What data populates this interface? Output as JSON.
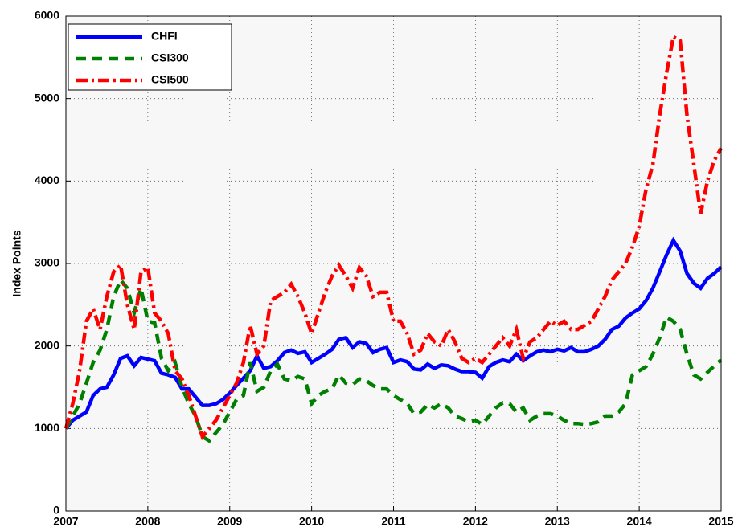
{
  "chart_data": {
    "type": "line",
    "y_label": "Index Points",
    "x": [
      2007,
      2007.083,
      2007.167,
      2007.25,
      2007.333,
      2007.417,
      2007.5,
      2007.583,
      2007.667,
      2007.75,
      2007.833,
      2007.917,
      2008,
      2008.083,
      2008.167,
      2008.25,
      2008.333,
      2008.417,
      2008.5,
      2008.583,
      2008.667,
      2008.75,
      2008.833,
      2008.917,
      2009,
      2009.083,
      2009.167,
      2009.25,
      2009.333,
      2009.417,
      2009.5,
      2009.583,
      2009.667,
      2009.75,
      2009.833,
      2009.917,
      2010,
      2010.083,
      2010.167,
      2010.25,
      2010.333,
      2010.417,
      2010.5,
      2010.583,
      2010.667,
      2010.75,
      2010.833,
      2010.917,
      2011,
      2011.083,
      2011.167,
      2011.25,
      2011.333,
      2011.417,
      2011.5,
      2011.583,
      2011.667,
      2011.75,
      2011.833,
      2011.917,
      2012,
      2012.083,
      2012.167,
      2012.25,
      2012.333,
      2012.417,
      2012.5,
      2012.583,
      2012.667,
      2012.75,
      2012.833,
      2012.917,
      2013,
      2013.083,
      2013.167,
      2013.25,
      2013.333,
      2013.417,
      2013.5,
      2013.583,
      2013.667,
      2013.75,
      2013.833,
      2013.917,
      2014,
      2014.083,
      2014.167,
      2014.25,
      2014.333,
      2014.417,
      2014.5,
      2014.583,
      2014.667,
      2014.75,
      2014.833,
      2014.917,
      2015
    ],
    "series": [
      {
        "name": "CHFI",
        "color": "#0000ff",
        "dash": "solid",
        "values": [
          1000,
          1100,
          1150,
          1200,
          1400,
          1480,
          1500,
          1650,
          1850,
          1880,
          1760,
          1860,
          1840,
          1820,
          1670,
          1650,
          1620,
          1480,
          1480,
          1380,
          1280,
          1280,
          1300,
          1350,
          1430,
          1520,
          1610,
          1700,
          1880,
          1730,
          1750,
          1820,
          1920,
          1950,
          1910,
          1930,
          1800,
          1850,
          1900,
          1960,
          2080,
          2100,
          1980,
          2050,
          2030,
          1920,
          1960,
          1980,
          1800,
          1830,
          1810,
          1720,
          1710,
          1780,
          1730,
          1770,
          1760,
          1720,
          1690,
          1690,
          1680,
          1610,
          1750,
          1800,
          1830,
          1810,
          1900,
          1820,
          1880,
          1930,
          1950,
          1930,
          1960,
          1940,
          1980,
          1930,
          1930,
          1960,
          2000,
          2080,
          2200,
          2240,
          2340,
          2400,
          2450,
          2550,
          2700,
          2900,
          3100,
          3280,
          3150,
          2880,
          2760,
          2700,
          2820,
          2880,
          2960
        ]
      },
      {
        "name": "CSI300",
        "color": "#008000",
        "dash": "dashed",
        "values": [
          1000,
          1150,
          1300,
          1550,
          1800,
          1950,
          2200,
          2600,
          2800,
          2700,
          2400,
          2700,
          2300,
          2280,
          1850,
          1700,
          1800,
          1500,
          1300,
          1150,
          900,
          850,
          950,
          1050,
          1200,
          1350,
          1400,
          1800,
          1450,
          1500,
          1700,
          1780,
          1600,
          1580,
          1630,
          1600,
          1300,
          1400,
          1450,
          1480,
          1650,
          1550,
          1530,
          1600,
          1580,
          1520,
          1480,
          1480,
          1400,
          1350,
          1300,
          1180,
          1200,
          1290,
          1250,
          1300,
          1250,
          1150,
          1120,
          1080,
          1100,
          1050,
          1150,
          1250,
          1310,
          1300,
          1200,
          1250,
          1100,
          1150,
          1180,
          1180,
          1150,
          1100,
          1060,
          1060,
          1050,
          1060,
          1080,
          1150,
          1150,
          1200,
          1300,
          1650,
          1700,
          1750,
          1900,
          2100,
          2350,
          2300,
          2200,
          1900,
          1650,
          1600,
          1680,
          1760,
          1830
        ]
      },
      {
        "name": "CSI500",
        "color": "#ff0000",
        "dash": "dashdot",
        "values": [
          1000,
          1300,
          1700,
          2300,
          2450,
          2200,
          2600,
          2900,
          2980,
          2500,
          2200,
          2900,
          2950,
          2400,
          2300,
          2150,
          1700,
          1600,
          1400,
          1150,
          900,
          1000,
          1100,
          1250,
          1400,
          1550,
          1800,
          2250,
          1900,
          2000,
          2550,
          2600,
          2650,
          2750,
          2600,
          2400,
          2150,
          2400,
          2650,
          2850,
          2980,
          2850,
          2700,
          2950,
          2850,
          2600,
          2650,
          2650,
          2300,
          2300,
          2150,
          1900,
          1950,
          2150,
          2050,
          2000,
          2200,
          2050,
          1850,
          1800,
          1850,
          1800,
          1900,
          2000,
          2100,
          2000,
          2200,
          1850,
          2050,
          2100,
          2200,
          2300,
          2250,
          2300,
          2200,
          2200,
          2250,
          2300,
          2450,
          2600,
          2800,
          2900,
          3000,
          3200,
          3450,
          3900,
          4200,
          4800,
          5300,
          5750,
          5700,
          4800,
          4200,
          3600,
          4000,
          4250,
          4400
        ]
      }
    ],
    "xlim": [
      2007,
      2015
    ],
    "xticks": [
      2007,
      2008,
      2009,
      2010,
      2011,
      2012,
      2013,
      2014,
      2015
    ],
    "ylim": [
      0,
      6000
    ],
    "yticks": [
      0,
      1000,
      2000,
      3000,
      4000,
      5000,
      6000
    ],
    "grid": true,
    "legend": "upper-left"
  }
}
